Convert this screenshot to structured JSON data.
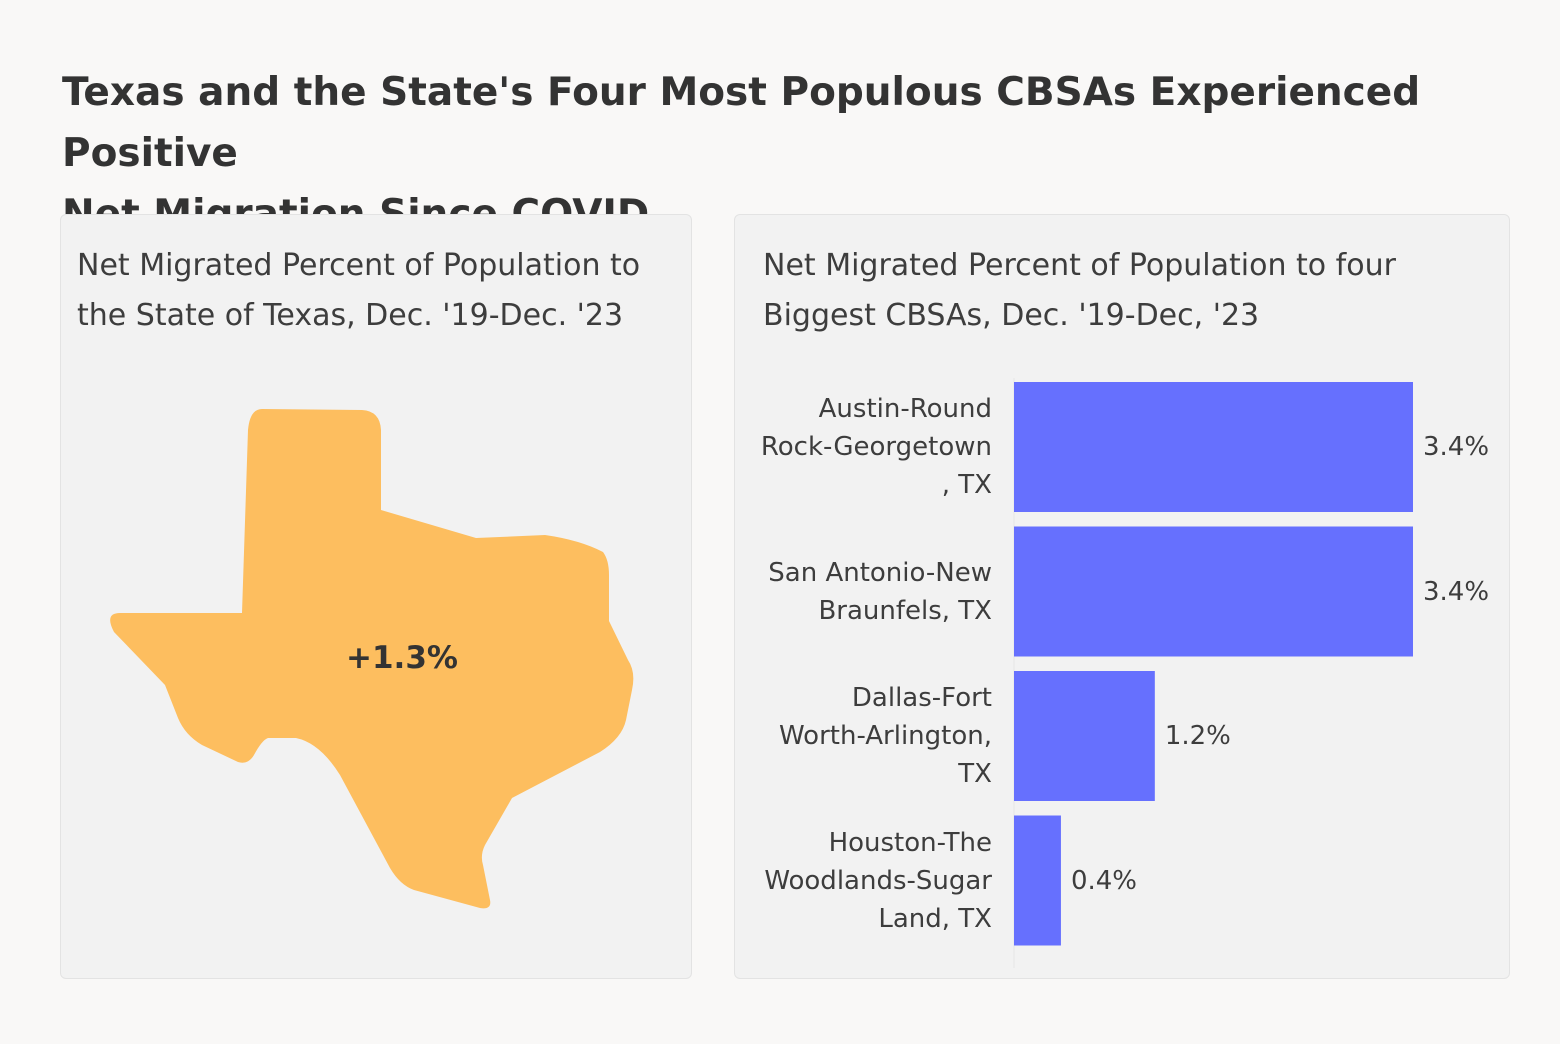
{
  "title_lines": [
    "Texas and the State's Four Most Populous CBSAs Experienced Positive",
    "Net Migration Since COVID"
  ],
  "left_panel": {
    "title_lines": [
      "Net Migrated Percent of Population to",
      "the State of Texas, Dec. '19-Dec. '23"
    ],
    "map_value": "+1.3%",
    "map_color": "#fdbe5f"
  },
  "chart_data": {
    "type": "bar",
    "orientation": "horizontal",
    "title_lines": [
      "Net Migrated Percent of Population to four",
      "Biggest CBSAs, Dec. '19-Dec, '23"
    ],
    "categories": [
      [
        "Austin-Round",
        "Rock-Georgetown",
        ", TX"
      ],
      [
        "San Antonio-New",
        "Braunfels, TX"
      ],
      [
        "Dallas-Fort",
        "Worth-Arlington,",
        "TX"
      ],
      [
        "Houston-The",
        "Woodlands-Sugar",
        "Land, TX"
      ]
    ],
    "values": [
      3.4,
      3.4,
      1.2,
      0.4
    ],
    "value_labels": [
      "3.4%",
      "3.4%",
      "1.2%",
      "0.4%"
    ],
    "xlim": [
      0,
      3.4
    ],
    "bar_color": "#6670fe",
    "grid": false,
    "legend": "none"
  }
}
